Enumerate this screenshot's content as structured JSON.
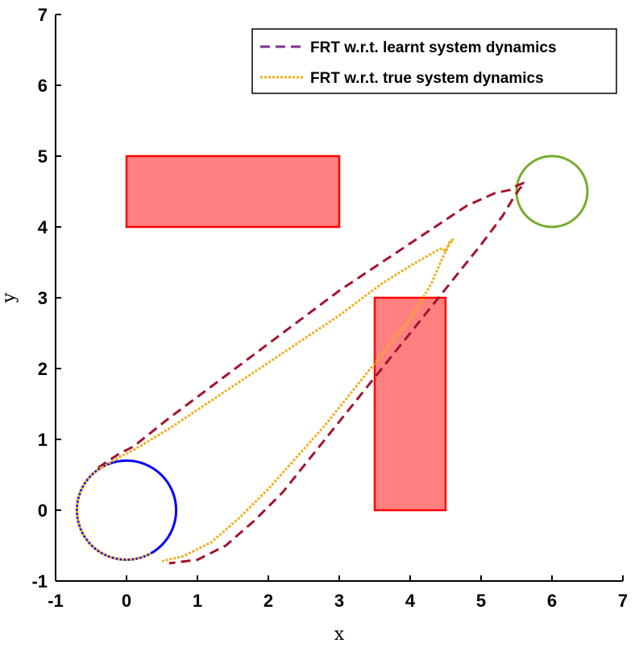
{
  "chart_data": {
    "type": "line",
    "title": "",
    "xlabel": "x",
    "ylabel": "y",
    "xlim": [
      -1,
      7
    ],
    "ylim": [
      -1,
      7
    ],
    "xticks": [
      "-1",
      "0",
      "1",
      "2",
      "3",
      "4",
      "5",
      "6",
      "7"
    ],
    "yticks": [
      "-1",
      "0",
      "1",
      "2",
      "3",
      "4",
      "5",
      "6",
      "7"
    ],
    "grid": false,
    "legend_position": "top-right",
    "legend": [
      {
        "label": "FRT w.r.t. learnt system dynamics",
        "style": "dashed",
        "color": "#7e2f8e"
      },
      {
        "label": "FRT w.r.t. true system dynamics",
        "style": "dotted",
        "color": "#edb120"
      }
    ],
    "obstacles": [
      {
        "x": 0,
        "y": 4,
        "width": 3,
        "height": 1,
        "fill": "#ff8080",
        "edge": "#ff0000"
      },
      {
        "x": 3.5,
        "y": 0,
        "width": 1,
        "height": 3,
        "fill": "#ff8080",
        "edge": "#ff0000"
      }
    ],
    "initial_set": {
      "center": [
        0,
        0
      ],
      "radius": 0.7,
      "color": "#0000ff"
    },
    "target_set": {
      "center": [
        6,
        4.5
      ],
      "radius": 0.5,
      "color": "#77ac30"
    },
    "series": [
      {
        "name": "FRT w.r.t. learnt system dynamics",
        "color": "#a2142f",
        "style": "dashed",
        "x": [
          -0.4,
          -0.1,
          0.1,
          0.6,
          1.2,
          1.8,
          2.4,
          3.0,
          3.6,
          4.2,
          4.8,
          5.2,
          5.4,
          5.5,
          5.6,
          5.62,
          5.55,
          5.45,
          5.3,
          5.0,
          4.6,
          4.2,
          3.8,
          3.4,
          3.0,
          2.6,
          2.2,
          1.8,
          1.4,
          1.0,
          0.6
        ],
        "y": [
          0.6,
          0.8,
          0.9,
          1.3,
          1.75,
          2.2,
          2.65,
          3.1,
          3.5,
          3.9,
          4.3,
          4.48,
          4.52,
          4.58,
          4.62,
          4.6,
          4.55,
          4.4,
          4.15,
          3.75,
          3.25,
          2.75,
          2.25,
          1.75,
          1.25,
          0.75,
          0.25,
          -0.15,
          -0.5,
          -0.7,
          -0.75
        ]
      },
      {
        "name": "FRT w.r.t. true system dynamics",
        "color": "#edb120",
        "style": "dotted",
        "x": [
          -0.35,
          -0.1,
          0.1,
          0.6,
          1.2,
          1.8,
          2.4,
          3.0,
          3.6,
          4.0,
          4.3,
          4.4,
          4.45,
          4.5,
          4.55,
          4.6,
          4.55,
          4.45,
          4.3,
          4.0,
          3.6,
          3.2,
          2.8,
          2.4,
          2.0,
          1.6,
          1.2,
          0.8,
          0.5
        ],
        "y": [
          0.6,
          0.75,
          0.85,
          1.15,
          1.55,
          1.95,
          2.35,
          2.75,
          3.2,
          3.45,
          3.62,
          3.68,
          3.7,
          3.65,
          3.78,
          3.82,
          3.75,
          3.55,
          3.2,
          2.7,
          2.2,
          1.7,
          1.2,
          0.75,
          0.3,
          -0.1,
          -0.45,
          -0.65,
          -0.72
        ]
      }
    ]
  }
}
